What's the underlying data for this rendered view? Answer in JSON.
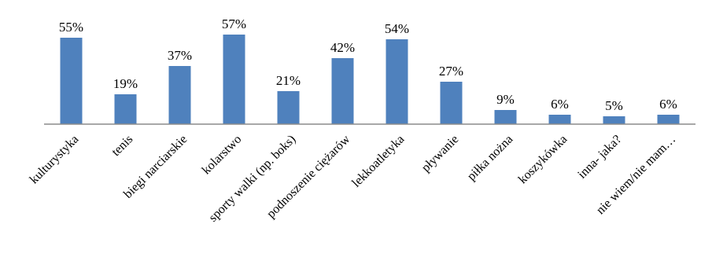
{
  "chart_data": {
    "type": "bar",
    "categories": [
      "kulturystyka",
      "tenis",
      "biegi narciarskie",
      "kolarstwo",
      "sporty walki (np. boks)",
      "podnoszenie ciężarów",
      "lekkoatletyka",
      "pływanie",
      "piłka nożna",
      "koszykówka",
      "inna- jaka?",
      "nie wiem/nie mam…"
    ],
    "values": [
      55,
      19,
      37,
      57,
      21,
      42,
      54,
      27,
      9,
      6,
      5,
      6
    ],
    "data_labels": [
      "55%",
      "19%",
      "37%",
      "57%",
      "21%",
      "42%",
      "54%",
      "27%",
      "9%",
      "6%",
      "5%",
      "6%"
    ],
    "ylim": [
      0,
      60
    ],
    "color": "#4f81bd",
    "grid": false,
    "legend": "none"
  }
}
